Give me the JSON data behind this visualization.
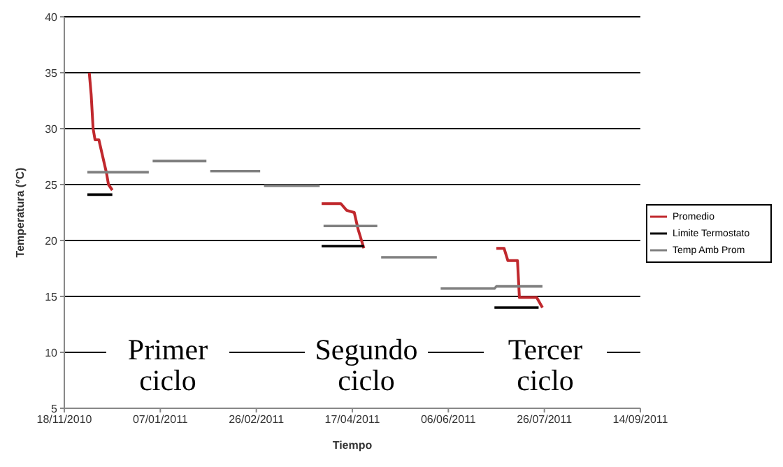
{
  "chart_data": {
    "type": "line",
    "xlabel": "Tiempo",
    "ylabel": "Temperatura (°C)",
    "xlim": [
      "2010-11-18",
      "2011-09-14"
    ],
    "xticks": [
      {
        "value": "2010-11-18",
        "label": "18/11/2010"
      },
      {
        "value": "2011-01-07",
        "label": "07/01/2011"
      },
      {
        "value": "2011-02-26",
        "label": "26/02/2011"
      },
      {
        "value": "2011-04-17",
        "label": "17/04/2011"
      },
      {
        "value": "2011-06-06",
        "label": "06/06/2011"
      },
      {
        "value": "2011-07-26",
        "label": "26/07/2011"
      },
      {
        "value": "2011-09-14",
        "label": "14/09/2011"
      }
    ],
    "ylim": [
      5,
      40
    ],
    "yticks": [
      5,
      10,
      15,
      20,
      25,
      30,
      35,
      40
    ],
    "grid": "y",
    "legend": "right",
    "marker": "none",
    "line_style": "solid",
    "series": [
      {
        "name": "Promedio",
        "color": "#c0282d",
        "x": [
          "2010-12-01",
          "2010-12-02",
          "2010-12-03",
          "2010-12-04",
          "2010-12-06",
          "2010-12-08",
          "2010-12-10",
          "2010-12-11",
          "2010-12-13",
          "2011-01-01",
          "2011-04-01",
          "2011-04-11",
          "2011-04-14",
          "2011-04-18",
          "2011-04-20",
          "2011-04-23",
          "2011-05-15",
          "2011-07-01",
          "2011-07-05",
          "2011-07-07",
          "2011-07-12",
          "2011-07-13",
          "2011-07-22",
          "2011-07-25"
        ],
        "values": [
          35,
          33,
          30,
          29,
          29,
          27.5,
          26,
          25,
          24.5,
          null,
          23.3,
          23.3,
          22.7,
          22.5,
          21,
          19.3,
          null,
          19.3,
          19.3,
          18.2,
          18.2,
          14.9,
          14.9,
          14.0
        ]
      },
      {
        "name": "Limite Termostato",
        "color": "#000000",
        "x": [
          "2010-11-30",
          "2010-12-13",
          "2011-01-01",
          "2011-04-01",
          "2011-04-23",
          "2011-05-15",
          "2011-06-30",
          "2011-07-23"
        ],
        "values": [
          24.1,
          24.1,
          null,
          19.5,
          19.5,
          null,
          14.0,
          14.0
        ]
      },
      {
        "name": "Temp Amb Prom",
        "color": "#808080",
        "x": [
          "2010-11-30",
          "2011-01-01",
          "2011-01-02",
          "2011-01-03",
          "2011-01-31",
          "2011-02-01",
          "2011-02-02",
          "2011-02-28",
          "2011-03-01",
          "2011-03-02",
          "2011-03-31",
          "2011-04-01",
          "2011-04-02",
          "2011-04-30",
          "2011-05-01",
          "2011-05-02",
          "2011-05-31",
          "2011-06-01",
          "2011-06-02",
          "2011-06-30",
          "2011-07-01",
          "2011-07-25"
        ],
        "values": [
          26.1,
          26.1,
          null,
          27.1,
          27.1,
          null,
          26.2,
          26.2,
          null,
          24.9,
          24.9,
          null,
          21.3,
          21.3,
          null,
          18.5,
          18.5,
          null,
          15.7,
          15.7,
          15.9,
          15.9
        ]
      }
    ],
    "annotations": [
      "Primer ciclo",
      "Segundo ciclo",
      "Tercer ciclo"
    ]
  }
}
